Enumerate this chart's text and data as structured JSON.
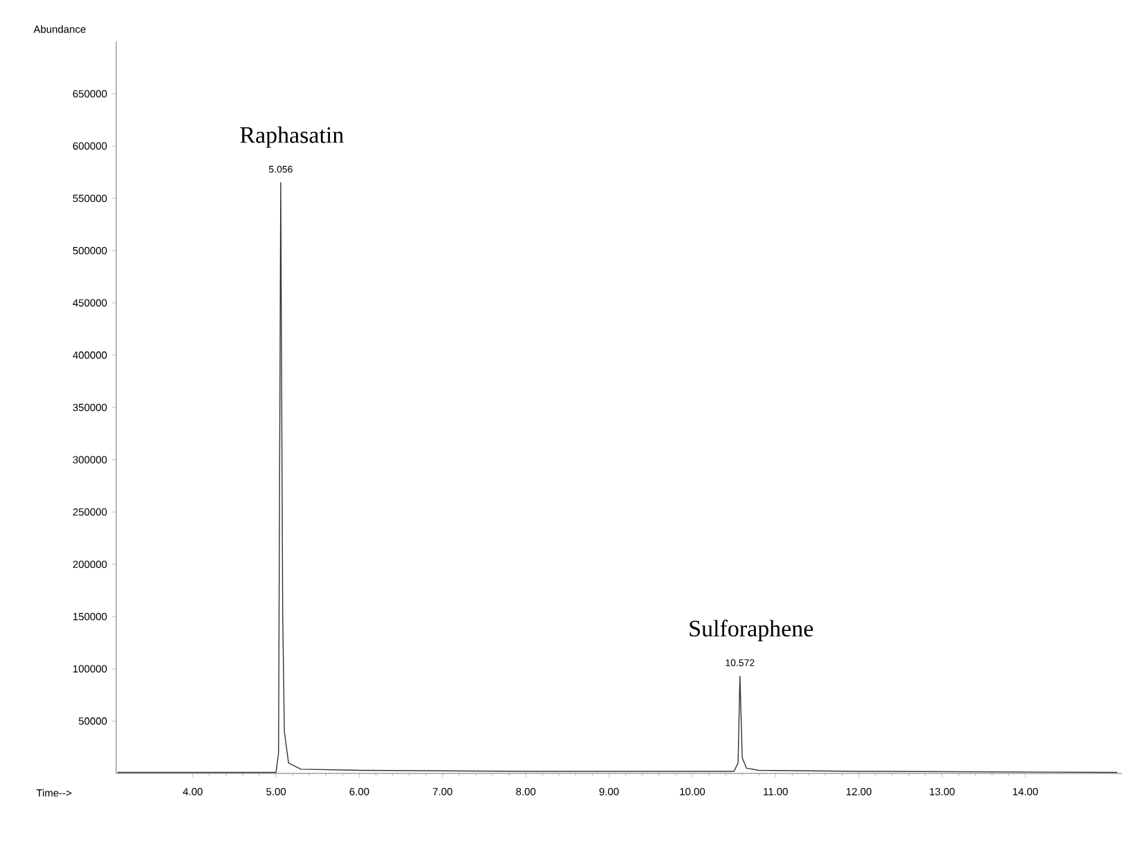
{
  "chart_data": {
    "type": "line",
    "xlabel": "Time-->",
    "ylabel": "Abundance",
    "xlim": [
      3.08,
      15.16
    ],
    "ylim": [
      0,
      700000
    ],
    "xticks": [
      {
        "value": 4,
        "label": "4.00"
      },
      {
        "value": 5,
        "label": "5.00"
      },
      {
        "value": 6,
        "label": "6.00"
      },
      {
        "value": 7,
        "label": "7.00"
      },
      {
        "value": 8,
        "label": "8.00"
      },
      {
        "value": 9,
        "label": "9.00"
      },
      {
        "value": 10,
        "label": "10.00"
      },
      {
        "value": 11,
        "label": "11.00"
      },
      {
        "value": 12,
        "label": "12.00"
      },
      {
        "value": 13,
        "label": "13.00"
      },
      {
        "value": 14,
        "label": "14.00"
      }
    ],
    "yticks": [
      50000,
      100000,
      150000,
      200000,
      250000,
      300000,
      350000,
      400000,
      450000,
      500000,
      550000,
      600000,
      650000
    ],
    "series": [
      {
        "color": "#333333",
        "x": [
          3.1,
          5.0,
          5.03,
          5.056,
          5.08,
          5.1,
          5.15,
          5.3,
          6.0,
          8.0,
          10.5,
          10.55,
          10.572,
          10.6,
          10.65,
          10.8,
          12.0,
          15.1
        ],
        "values": [
          1000,
          1000,
          20000,
          565000,
          150000,
          40000,
          10000,
          4000,
          3000,
          2000,
          2000,
          10000,
          93000,
          15000,
          5000,
          3000,
          2000,
          1000
        ]
      }
    ],
    "annotations": [
      "5.056",
      "Raphasatin",
      "10.572",
      "Sulforaphene"
    ]
  }
}
